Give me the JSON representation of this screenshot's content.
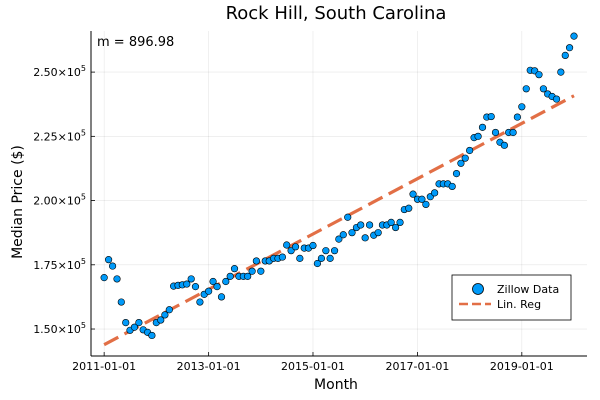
{
  "chart_data": {
    "type": "scatter",
    "title": "Rock Hill, South Carolina",
    "xlabel": "Month",
    "ylabel": "Median Price ($)",
    "annotation": "m = 896.98",
    "x_ticks": [
      "2011-01-01",
      "2013-01-01",
      "2015-01-01",
      "2017-01-01",
      "2019-01-01"
    ],
    "y_ticks": [
      {
        "value": 150000,
        "mantissa": "1.50",
        "exp": "5"
      },
      {
        "value": 175000,
        "mantissa": "1.75",
        "exp": "5"
      },
      {
        "value": 200000,
        "mantissa": "2.00",
        "exp": "5"
      },
      {
        "value": 225000,
        "mantissa": "2.25",
        "exp": "5"
      },
      {
        "value": 250000,
        "mantissa": "2.50",
        "exp": "5"
      }
    ],
    "xlim": [
      "2010-10-01",
      "2020-04-01"
    ],
    "ylim": [
      139500,
      266000
    ],
    "grid": true,
    "legend_position": "bottom-right",
    "series": [
      {
        "name": "Zillow Data",
        "kind": "scatter",
        "color": "#009af9",
        "start_month": "2011-01",
        "values": [
          170000,
          177000,
          174500,
          169500,
          160500,
          152500,
          149500,
          150700,
          152500,
          149700,
          148700,
          147500,
          152500,
          153500,
          155500,
          157500,
          166700,
          167000,
          167200,
          167500,
          169500,
          166500,
          160500,
          163500,
          164700,
          168500,
          166500,
          162500,
          168500,
          170500,
          173500,
          170500,
          170500,
          170500,
          172500,
          176500,
          172500,
          176500,
          176500,
          177500,
          177500,
          178000,
          182700,
          180500,
          182000,
          177500,
          181500,
          181500,
          182500,
          175500,
          177500,
          180500,
          177500,
          180500,
          185000,
          186700,
          193500,
          187500,
          189500,
          190500,
          185500,
          190500,
          186500,
          187500,
          190500,
          190500,
          191500,
          189500,
          191500,
          196500,
          197000,
          202500,
          200500,
          200500,
          198500,
          201500,
          203000,
          206500,
          206500,
          206500,
          205500,
          210500,
          214500,
          216500,
          219500,
          224500,
          225000,
          228500,
          232500,
          232700,
          226500,
          222700,
          221500,
          226500,
          226500,
          232500,
          236500,
          243500,
          250700,
          250500,
          249000,
          243500,
          241500,
          240500,
          239500,
          250000,
          256500,
          259500,
          264000
        ]
      },
      {
        "name": "Lin. Reg",
        "kind": "line",
        "color": "#e26f46",
        "x_start": "2011-01-01",
        "y_start": 143900,
        "x_end": "2020-01-01",
        "y_end": 240800
      }
    ]
  }
}
